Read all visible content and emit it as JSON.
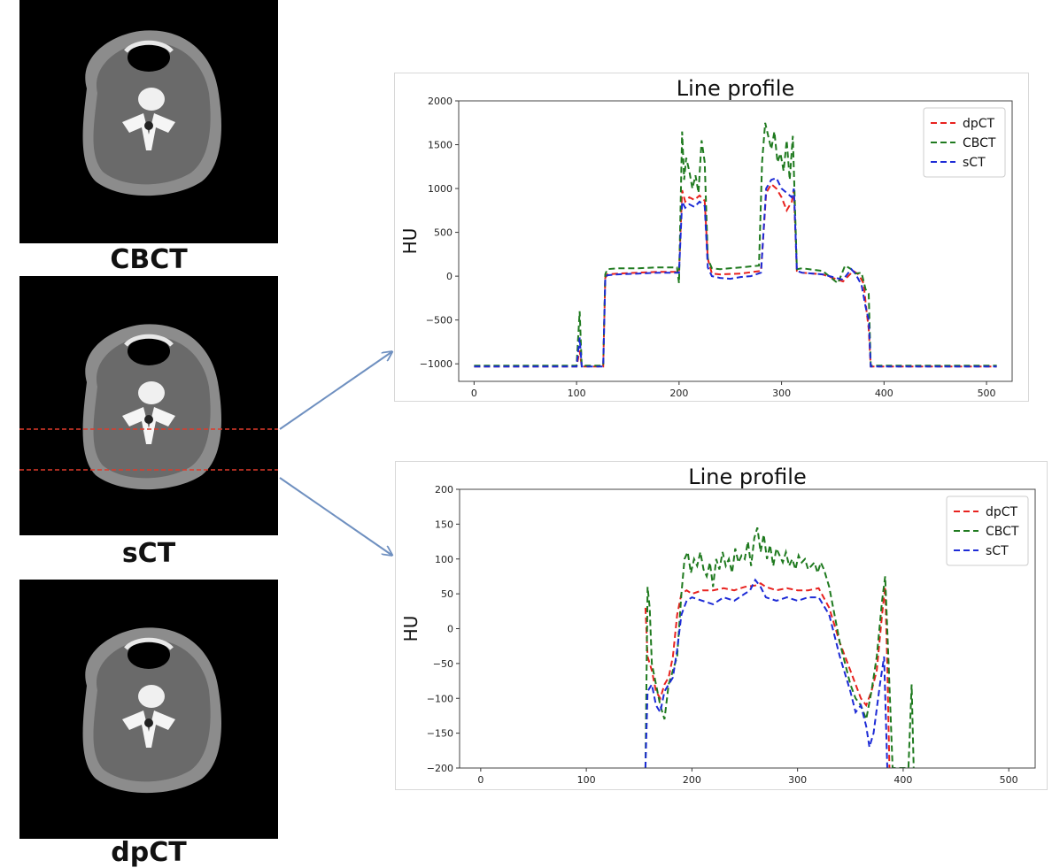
{
  "scans": [
    {
      "label": "CBCT"
    },
    {
      "label": "sCT"
    },
    {
      "label": "dpCT"
    }
  ],
  "colors": {
    "dpCT": "#e8221f",
    "CBCT": "#1f7a1f",
    "sCT": "#1d2bd6",
    "guide_line": "#e03a2a",
    "arrow": "#6f90c0"
  },
  "chart_data": [
    {
      "type": "line",
      "title": "Line profile",
      "xlabel": "",
      "ylabel": "HU",
      "xlim": [
        -15,
        525
      ],
      "ylim": [
        -1200,
        2000
      ],
      "xticks": [
        0,
        100,
        200,
        300,
        400,
        500
      ],
      "yticks": [
        -1000,
        -500,
        0,
        500,
        1000,
        1500,
        2000
      ],
      "legend_position": "top-right",
      "line_style": "dashed",
      "series": [
        {
          "name": "dpCT",
          "color": "#e8221f",
          "x": [
            0,
            100,
            103,
            105,
            108,
            126,
            128,
            130,
            140,
            160,
            180,
            200,
            203,
            206,
            210,
            215,
            220,
            225,
            228,
            232,
            240,
            260,
            280,
            285,
            290,
            295,
            300,
            305,
            310,
            312,
            315,
            320,
            340,
            360,
            370,
            375,
            380,
            383,
            385,
            387,
            400,
            450,
            510
          ],
          "y": [
            -1030,
            -1030,
            -850,
            -1030,
            -1030,
            -1030,
            -20,
            20,
            30,
            40,
            50,
            50,
            980,
            850,
            900,
            870,
            920,
            860,
            200,
            30,
            20,
            30,
            60,
            950,
            1050,
            1000,
            900,
            750,
            850,
            980,
            60,
            40,
            20,
            -60,
            60,
            20,
            -80,
            -400,
            -600,
            -1030,
            -1030,
            -1030,
            -1030
          ]
        },
        {
          "name": "CBCT",
          "color": "#1f7a1f",
          "x": [
            0,
            100,
            103,
            105,
            108,
            126,
            128,
            130,
            140,
            160,
            180,
            198,
            200,
            203,
            205,
            207,
            210,
            213,
            216,
            219,
            222,
            225,
            228,
            232,
            240,
            260,
            278,
            281,
            284,
            287,
            290,
            293,
            296,
            299,
            302,
            305,
            308,
            311,
            315,
            320,
            340,
            355,
            362,
            368,
            372,
            378,
            382,
            385,
            387,
            400,
            450,
            510
          ],
          "y": [
            -1020,
            -1020,
            -400,
            -1020,
            -1020,
            -1020,
            20,
            80,
            90,
            90,
            100,
            100,
            -80,
            1650,
            1100,
            1350,
            1200,
            1000,
            1150,
            950,
            1550,
            1300,
            200,
            90,
            80,
            100,
            120,
            1300,
            1750,
            1600,
            1450,
            1650,
            1300,
            1400,
            1200,
            1550,
            1100,
            1600,
            80,
            90,
            60,
            -80,
            120,
            80,
            30,
            40,
            -150,
            -200,
            -1020,
            -1020,
            -1020,
            -1020
          ]
        },
        {
          "name": "sCT",
          "color": "#1d2bd6",
          "x": [
            0,
            100,
            103,
            105,
            108,
            126,
            128,
            130,
            140,
            160,
            180,
            200,
            203,
            206,
            210,
            215,
            220,
            225,
            228,
            232,
            240,
            250,
            260,
            270,
            280,
            285,
            290,
            295,
            300,
            305,
            310,
            312,
            315,
            320,
            340,
            360,
            368,
            372,
            378,
            382,
            385,
            387,
            400,
            450,
            510
          ],
          "y": [
            -1030,
            -1030,
            -700,
            -1030,
            -1030,
            -1030,
            -30,
            10,
            20,
            30,
            40,
            40,
            850,
            780,
            820,
            790,
            850,
            800,
            100,
            0,
            -20,
            -30,
            -10,
            0,
            40,
            1000,
            1100,
            1120,
            1000,
            950,
            900,
            1000,
            60,
            40,
            20,
            -40,
            80,
            30,
            -100,
            -350,
            -500,
            -1030,
            -1030,
            -1030,
            -1030
          ]
        }
      ]
    },
    {
      "type": "line",
      "title": "Line profile",
      "xlabel": "",
      "ylabel": "HU",
      "xlim": [
        -20,
        525
      ],
      "ylim": [
        -200,
        200
      ],
      "xticks": [
        0,
        100,
        200,
        300,
        400,
        500
      ],
      "yticks": [
        -200,
        -150,
        -100,
        -50,
        0,
        50,
        100,
        150,
        200
      ],
      "legend_position": "top-right",
      "line_style": "dashed",
      "series": [
        {
          "name": "dpCT",
          "color": "#e8221f",
          "x": [
            156,
            158,
            162,
            166,
            170,
            174,
            178,
            182,
            186,
            190,
            195,
            200,
            210,
            220,
            230,
            240,
            250,
            260,
            265,
            270,
            280,
            290,
            300,
            310,
            320,
            330,
            340,
            350,
            355,
            360,
            365,
            370,
            375,
            380,
            383,
            385,
            387
          ],
          "y": [
            30,
            -40,
            -60,
            -90,
            -100,
            -80,
            -70,
            -40,
            20,
            50,
            55,
            50,
            55,
            55,
            58,
            55,
            60,
            62,
            65,
            60,
            55,
            58,
            55,
            55,
            58,
            30,
            -20,
            -60,
            -80,
            -100,
            -110,
            -90,
            -60,
            20,
            60,
            -50,
            -200
          ]
        },
        {
          "name": "CBCT",
          "color": "#1f7a1f",
          "x": [
            156,
            158,
            160,
            162,
            166,
            170,
            174,
            178,
            182,
            186,
            190,
            193,
            196,
            199,
            202,
            205,
            208,
            211,
            214,
            217,
            220,
            223,
            226,
            229,
            232,
            235,
            238,
            241,
            244,
            247,
            250,
            253,
            256,
            259,
            262,
            265,
            268,
            271,
            274,
            277,
            280,
            283,
            286,
            289,
            292,
            295,
            298,
            301,
            304,
            307,
            310,
            313,
            316,
            319,
            322,
            325,
            330,
            340,
            350,
            355,
            360,
            365,
            370,
            375,
            380,
            383,
            386,
            390,
            405,
            408,
            410
          ],
          "y": [
            -200,
            60,
            30,
            -50,
            -80,
            -110,
            -130,
            -80,
            -60,
            -40,
            50,
            100,
            110,
            80,
            100,
            90,
            110,
            85,
            75,
            95,
            60,
            100,
            85,
            110,
            90,
            100,
            80,
            115,
            95,
            105,
            100,
            125,
            90,
            130,
            145,
            110,
            135,
            100,
            120,
            90,
            115,
            105,
            95,
            110,
            90,
            100,
            85,
            105,
            95,
            100,
            85,
            90,
            95,
            80,
            95,
            85,
            60,
            -20,
            -80,
            -100,
            -110,
            -130,
            -90,
            -40,
            40,
            75,
            -40,
            -200,
            -200,
            -80,
            -200
          ]
        },
        {
          "name": "sCT",
          "color": "#1d2bd6",
          "x": [
            156,
            158,
            162,
            166,
            170,
            174,
            178,
            182,
            186,
            190,
            195,
            200,
            210,
            220,
            230,
            240,
            250,
            255,
            260,
            265,
            270,
            280,
            290,
            300,
            310,
            320,
            330,
            340,
            350,
            355,
            360,
            365,
            368,
            372,
            378,
            382,
            385,
            387
          ],
          "y": [
            -200,
            -90,
            -80,
            -110,
            -120,
            -90,
            -80,
            -70,
            -30,
            20,
            40,
            45,
            40,
            35,
            45,
            40,
            50,
            55,
            70,
            60,
            45,
            40,
            45,
            40,
            45,
            45,
            20,
            -40,
            -90,
            -120,
            -110,
            -140,
            -170,
            -150,
            -80,
            -40,
            -200,
            -200
          ]
        }
      ]
    }
  ]
}
